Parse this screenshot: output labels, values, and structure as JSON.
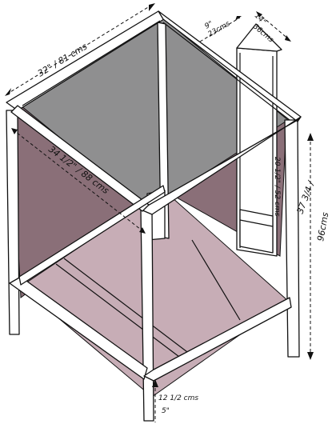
{
  "colors": {
    "top_glass": "#8f8f90",
    "wall_shade": "#8a6f78",
    "floor_shade": "#c7adb6",
    "frame": "#ffffff",
    "ink": "#111111"
  },
  "dimensions": {
    "width_top": "32\" / 81 cms",
    "depth_top": "9\"",
    "depth_top_metric": "23cms",
    "shelf_depth": "14\"",
    "shelf_depth_metric": "36cms",
    "inner_width": "34 1/2\" / 88 cms",
    "inner_height": "20 1/2\" / 52 cms",
    "total_height_in": "37 3/4 /",
    "total_height_cm": "96cms",
    "leg_height_metric": "12 1/2 cms",
    "leg_height_in": "5\""
  }
}
